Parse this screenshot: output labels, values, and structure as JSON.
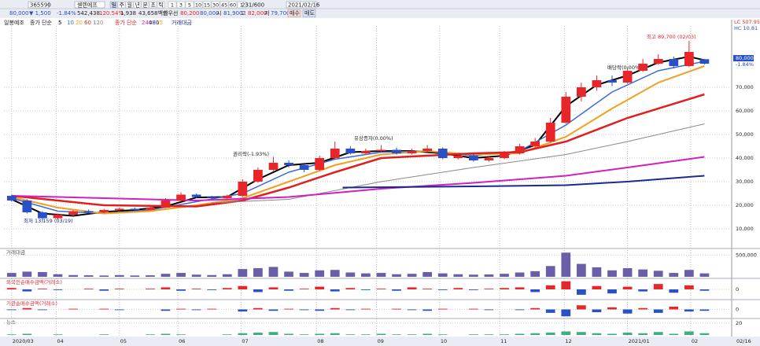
{
  "toolbar": {
    "code": "365590",
    "name": "셀렌에프",
    "periods": [
      "일",
      "주",
      "월",
      "년",
      "분",
      "초",
      "틱"
    ],
    "intervals": [
      "1",
      "3",
      "5",
      "10",
      "15",
      "30",
      "45",
      "60",
      "1"
    ],
    "count": "231/600",
    "date": "2021/02/16"
  },
  "quote": {
    "price": "80,000",
    "change": "▼ 1,500",
    "rate": "-1.84%",
    "volume": "542,438",
    "vol_rate": "120.54%",
    "trade": "1,938",
    "amount": "43,658백만",
    "best_label": "최우선",
    "best_ask": "80,200",
    "best_bid": "80,000",
    "open_label": "시",
    "open": "81,900",
    "high_label": "고",
    "high": "82,000",
    "low_label": "저",
    "low": "79,700",
    "buy": "매수",
    "sell": "매도"
  },
  "chart_data": {
    "type": "candlestick",
    "legend_title": "일봉예조",
    "legend_group1": "종가 단순",
    "legend_group2": "종가 단순",
    "volume_ma_label": "15",
    "legend_volume": "거래대금",
    "xlim": [
      -0.5,
      46
    ],
    "ylim": [
      7000,
      96000
    ],
    "xticks": [
      {
        "value": 0,
        "label": "2020/03"
      },
      {
        "value": 2.9,
        "label": "04"
      },
      {
        "value": 7,
        "label": "05"
      },
      {
        "value": 10.8,
        "label": "06"
      },
      {
        "value": 14.9,
        "label": "07"
      },
      {
        "value": 19.8,
        "label": "08"
      },
      {
        "value": 23.7,
        "label": "09"
      },
      {
        "value": 27.8,
        "label": "10"
      },
      {
        "value": 31.7,
        "label": "11"
      },
      {
        "value": 35.9,
        "label": "12"
      },
      {
        "value": 40,
        "label": "2021/01"
      },
      {
        "value": 44.1,
        "label": "02"
      }
    ],
    "last_date": "02/16",
    "yticks": [
      {
        "value": 10000,
        "label": "10,000"
      },
      {
        "value": 20000,
        "label": "20,000"
      },
      {
        "value": 30000,
        "label": "30,000"
      },
      {
        "value": 40000,
        "label": "40,000"
      },
      {
        "value": 50000,
        "label": "50,000"
      },
      {
        "value": 60000,
        "label": "60,000"
      },
      {
        "value": 70000,
        "label": "70,000"
      }
    ],
    "grid": true,
    "up_color": "#e8262a",
    "down_color": "#2950c8",
    "open": [
      24000,
      22000,
      17000,
      14500,
      16000,
      17500,
      17000,
      18000,
      18500,
      18000,
      19000,
      22000,
      24500,
      23500,
      23000,
      24000,
      30000,
      35000,
      38000,
      37000,
      35000,
      40000,
      44000,
      42000,
      43000,
      43500,
      42000,
      43000,
      44000,
      40000,
      41000,
      39000,
      40000,
      42000,
      45000,
      47000,
      55000,
      66000,
      70000,
      73000,
      72000,
      77000,
      80000,
      82000,
      79000,
      81900
    ],
    "high": [
      24500,
      22500,
      17500,
      16500,
      18000,
      18200,
      18500,
      19000,
      19000,
      19500,
      23000,
      25500,
      25000,
      24000,
      24500,
      31000,
      36000,
      40500,
      39000,
      38000,
      41000,
      47000,
      45000,
      44000,
      45500,
      44500,
      44000,
      45500,
      44500,
      42000,
      42000,
      41000,
      43000,
      46000,
      48500,
      57000,
      68000,
      72000,
      75000,
      75000,
      78500,
      82000,
      84000,
      83000,
      89700,
      82000
    ],
    "low": [
      21500,
      16500,
      13159,
      14000,
      15500,
      16500,
      16800,
      17500,
      17500,
      17800,
      18800,
      21500,
      23000,
      22500,
      22500,
      23500,
      29500,
      34500,
      36000,
      34000,
      34500,
      39500,
      41500,
      41500,
      42500,
      41500,
      41500,
      42500,
      39500,
      39500,
      38500,
      38500,
      39500,
      41500,
      44500,
      46500,
      54500,
      64000,
      68500,
      70500,
      71500,
      76500,
      79500,
      78000,
      78500,
      79700
    ],
    "close": [
      22000,
      17000,
      14500,
      16000,
      17500,
      17000,
      18000,
      18500,
      18000,
      19000,
      22000,
      24500,
      23500,
      23000,
      24000,
      30000,
      35000,
      38000,
      37000,
      35000,
      40000,
      44000,
      42000,
      43000,
      43500,
      42000,
      43000,
      44000,
      40000,
      41000,
      39000,
      40000,
      42000,
      45000,
      47000,
      55000,
      66000,
      70000,
      73000,
      72000,
      77000,
      80000,
      82000,
      79000,
      85000,
      80000
    ],
    "series": [
      {
        "name": "5",
        "color": "#000000",
        "width": 2,
        "x": [
          0,
          2,
          4,
          6,
          8,
          10,
          12,
          14,
          16,
          18,
          20,
          22,
          24,
          26,
          28,
          30,
          32,
          34,
          36,
          38,
          40,
          42,
          44,
          45
        ],
        "values": [
          22500,
          16500,
          15500,
          17200,
          18000,
          19500,
          23300,
          23500,
          31000,
          37000,
          38000,
          42500,
          43000,
          43000,
          42000,
          40000,
          41000,
          45500,
          62000,
          71000,
          75000,
          80500,
          83000,
          81500
        ]
      },
      {
        "name": "10",
        "color": "#3a6ad8",
        "width": 1.5,
        "x": [
          0,
          3,
          6,
          9,
          12,
          15,
          18,
          21,
          24,
          27,
          30,
          33,
          36,
          39,
          42,
          45
        ],
        "values": [
          23000,
          17500,
          16500,
          18000,
          21500,
          25000,
          34000,
          39500,
          42500,
          43000,
          41000,
          43000,
          54000,
          68000,
          77000,
          81000
        ]
      },
      {
        "name": "20",
        "color": "#f0a020",
        "width": 2,
        "x": [
          0,
          3,
          6,
          9,
          12,
          15,
          18,
          21,
          24,
          27,
          30,
          33,
          36,
          39,
          42,
          45
        ],
        "values": [
          23500,
          19000,
          16500,
          17500,
          20000,
          23000,
          30000,
          37000,
          41500,
          43000,
          41500,
          42000,
          49000,
          61000,
          72000,
          79000
        ]
      },
      {
        "name": "60",
        "color": "#e02020",
        "width": 2.5,
        "x": [
          0,
          6,
          12,
          15,
          18,
          21,
          24,
          30,
          33,
          36,
          40,
          45
        ],
        "values": [
          24000,
          20000,
          19500,
          22000,
          27500,
          34000,
          40000,
          42000,
          42500,
          47000,
          57000,
          67000
        ]
      },
      {
        "name": "120",
        "color": "#888888",
        "width": 1,
        "x": [
          13,
          18,
          24,
          30,
          36,
          40,
          45
        ],
        "values": [
          21000,
          22500,
          30000,
          36000,
          41500,
          47000,
          54500
        ]
      },
      {
        "name": "240",
        "color": "#d020c0",
        "width": 2,
        "x": [
          0,
          12,
          18,
          24,
          30,
          36,
          40,
          45
        ],
        "values": [
          24000,
          22000,
          23500,
          27000,
          29500,
          32500,
          36000,
          40500
        ]
      },
      {
        "name": "480",
        "color": "#1a2a90",
        "width": 2,
        "x": [
          21.5,
          30,
          36,
          40,
          45
        ],
        "values": [
          27500,
          28000,
          28500,
          30000,
          32500
        ]
      }
    ],
    "annotations": [
      "최고 89,700 (02/03)",
      "최저 13,159 (03/19)",
      "권리락(-1.93%)",
      "유상증자(0.00%)",
      "배당락(0.00%)"
    ],
    "right_labels": {
      "lc": "LC 507.95",
      "hc": "HC 10.81",
      "price": "80,000",
      "rate": "-1.84%"
    },
    "panels": [
      {
        "title": "거래대금",
        "type": "bar",
        "color": "#6b5ea8",
        "ylim": [
          0,
          620000
        ],
        "yticks": [
          {
            "value": 500000,
            "label": "500,000"
          }
        ],
        "values": [
          90000,
          120000,
          110000,
          60000,
          40000,
          35000,
          30000,
          40000,
          30000,
          35000,
          70000,
          90000,
          50000,
          40000,
          60000,
          180000,
          200000,
          230000,
          120000,
          90000,
          150000,
          160000,
          100000,
          80000,
          90000,
          60000,
          70000,
          110000,
          80000,
          60000,
          50000,
          55000,
          70000,
          100000,
          130000,
          250000,
          560000,
          300000,
          220000,
          150000,
          200000,
          170000,
          140000,
          90000,
          160000,
          80000
        ]
      },
      {
        "title": "외국인순매수금액(거래소)",
        "type": "signed",
        "ylim": [
          -14,
          14
        ],
        "yticks": [
          0
        ],
        "values": [
          2,
          -3,
          1,
          -1,
          0,
          1,
          -2,
          1,
          0,
          1,
          3,
          -2,
          1,
          -1,
          2,
          5,
          -4,
          3,
          -2,
          1,
          4,
          -3,
          2,
          -1,
          1,
          -2,
          3,
          1,
          -1,
          2,
          -1,
          1,
          2,
          3,
          -4,
          6,
          12,
          -8,
          5,
          -6,
          4,
          -3,
          8,
          -5,
          6,
          -2
        ]
      },
      {
        "title": "기관순매수금액(거래소)",
        "type": "signed",
        "ylim": [
          -12,
          12
        ],
        "yticks": [
          0
        ],
        "values": [
          -1,
          2,
          -1,
          0,
          1,
          0,
          1,
          -1,
          0,
          0,
          -2,
          1,
          -1,
          1,
          0,
          -3,
          2,
          -2,
          1,
          -1,
          -2,
          2,
          -1,
          1,
          0,
          1,
          -1,
          -2,
          1,
          0,
          1,
          -1,
          0,
          -1,
          2,
          -5,
          -10,
          6,
          -4,
          3,
          -6,
          2,
          -5,
          4,
          -3,
          -2
        ]
      },
      {
        "title": "뉴스",
        "type": "bar",
        "color": "#3fae82",
        "ylim": [
          0,
          25
        ],
        "yticks": [
          20
        ],
        "values": [
          1,
          2,
          0,
          1,
          0,
          0,
          1,
          0,
          0,
          1,
          2,
          1,
          0,
          0,
          1,
          3,
          4,
          5,
          2,
          1,
          2,
          3,
          1,
          1,
          2,
          1,
          1,
          2,
          1,
          0,
          1,
          1,
          1,
          2,
          3,
          4,
          6,
          5,
          3,
          2,
          4,
          3,
          5,
          2,
          6,
          3
        ]
      }
    ]
  }
}
